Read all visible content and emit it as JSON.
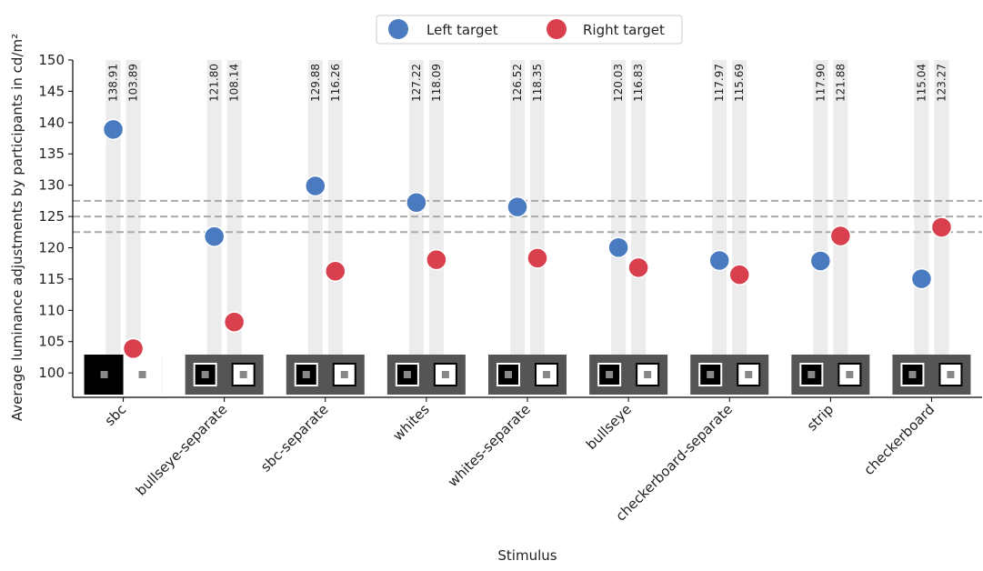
{
  "chart_data": {
    "type": "dot",
    "xlabel": "Stimulus",
    "ylabel": "Average luminance adjustments by participants in cd/m²",
    "categories": [
      "sbc",
      "bullseye-separate",
      "sbc-separate",
      "whites",
      "whites-separate",
      "bullseye",
      "checkerboard-separate",
      "strip",
      "checkerboard"
    ],
    "series": [
      {
        "name": "Left target",
        "color": "#4a7abf",
        "values": [
          138.91,
          121.8,
          129.88,
          127.22,
          126.52,
          120.03,
          117.97,
          117.9,
          115.04
        ],
        "value_labels": [
          "138.91",
          "121.80",
          "129.88",
          "127.22",
          "126.52",
          "120.03",
          "117.97",
          "117.90",
          "115.04"
        ]
      },
      {
        "name": "Right target",
        "color": "#d9404e",
        "values": [
          103.89,
          108.14,
          116.26,
          118.09,
          118.35,
          116.83,
          115.69,
          121.88,
          123.27
        ],
        "value_labels": [
          "103.89",
          "108.14",
          "116.26",
          "118.09",
          "118.35",
          "116.83",
          "115.69",
          "121.88",
          "123.27"
        ]
      }
    ],
    "reference_lines": [
      122.5,
      125,
      127.5
    ],
    "ylim": [
      96.1,
      150
    ],
    "yticks": [
      100,
      105,
      110,
      115,
      120,
      125,
      130,
      135,
      140,
      145,
      150
    ],
    "legend": "top-center"
  }
}
